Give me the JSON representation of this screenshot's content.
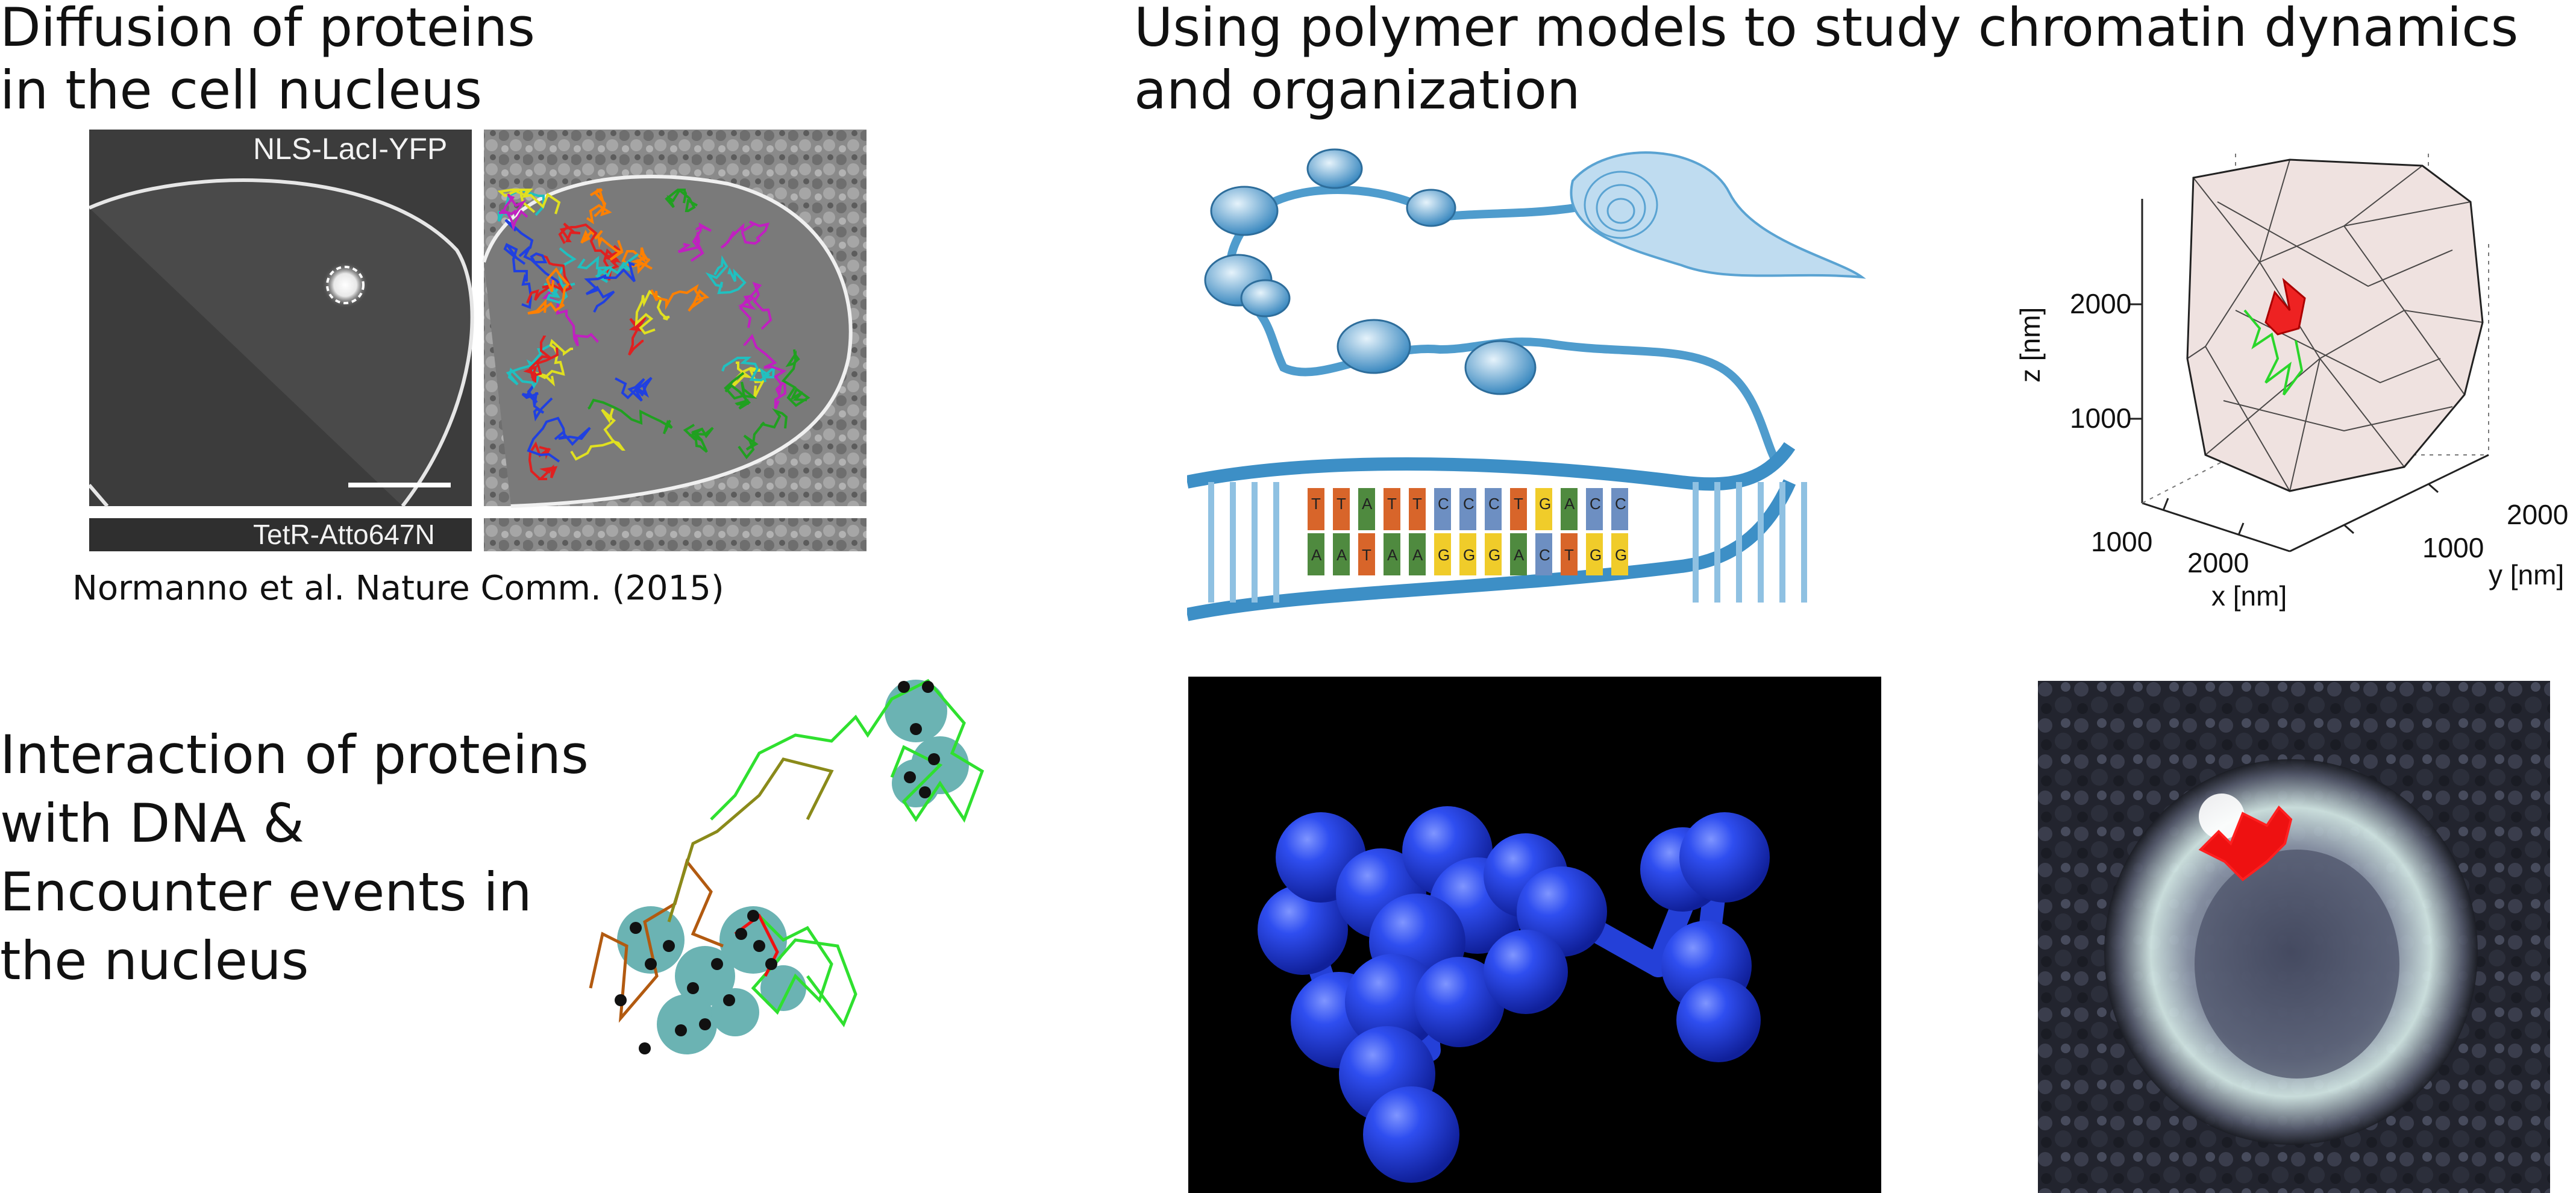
{
  "sections": {
    "diffusion": {
      "title": "Diffusion of proteins\nin the cell nucleus",
      "panel_label_top": "NLS-LacI-YFP",
      "panel_label_bottom": "TetR-Atto647N",
      "citation": "Normanno et al. Nature Comm. (2015)"
    },
    "polymer": {
      "title": "Using polymer models to study chromatin dynamics\nand organization",
      "dna_bases_top": [
        "T",
        "T",
        "A",
        "T",
        "T",
        "C",
        "C",
        "C",
        "T",
        "G",
        "A",
        "C",
        "C"
      ],
      "dna_bases_bottom": [
        "A",
        "A",
        "T",
        "A",
        "A",
        "G",
        "G",
        "G",
        "A",
        "C",
        "T",
        "G",
        "G"
      ],
      "base_colors": {
        "A": "#4f8a3f",
        "T": "#d8652a",
        "C": "#6d8fc2",
        "G": "#f0cc2a"
      },
      "plot3d": {
        "z_label": "z  [nm]",
        "x_label": "x  [nm]",
        "y_label": "y  [nm]",
        "z_ticks": [
          "2000",
          "1000"
        ],
        "x_ticks": [
          "1000",
          "2000"
        ],
        "y_ticks": [
          "1000",
          "2000"
        ]
      }
    },
    "interaction": {
      "title": "Interaction of proteins\nwith DNA &\nEncounter events in\n the nucleus"
    }
  },
  "colors": {
    "sphere_blue": "#2a46d8",
    "trajectory_green": "#2fe02f",
    "trajectory_red": "#ee1111",
    "teal_sphere": "#3a9a9a"
  }
}
